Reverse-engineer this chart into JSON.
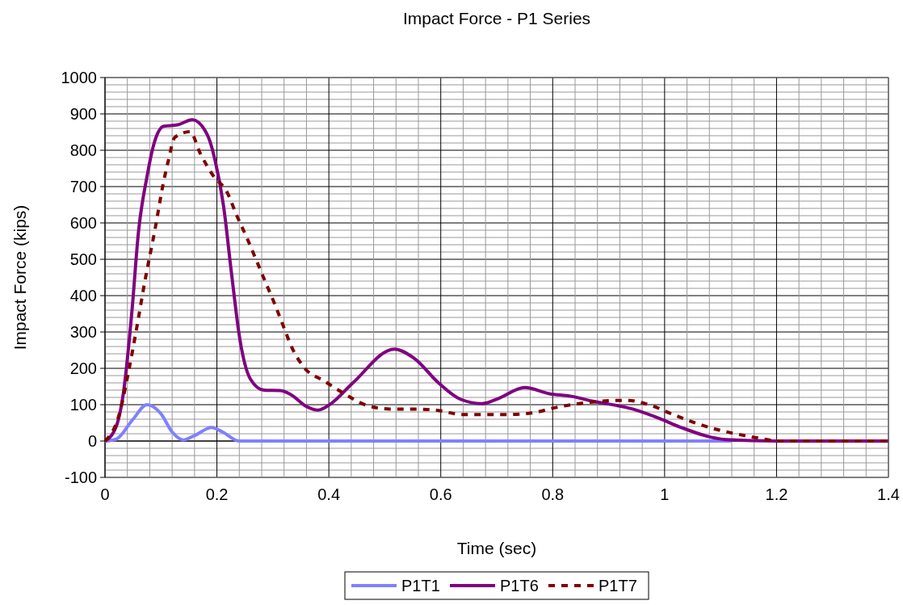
{
  "chart_data": {
    "type": "line",
    "title": "Impact Force - P1 Series",
    "xlabel": "Time (sec)",
    "ylabel": "Impact Force (kips)",
    "xlim": [
      0,
      1.4
    ],
    "ylim": [
      -100,
      1000
    ],
    "xticks": [
      0,
      {
        "value": 0.04,
        "label": null
      },
      {
        "value": 0.08,
        "label": null
      },
      {
        "value": 0.12,
        "label": null
      },
      {
        "value": 0.16,
        "label": null
      },
      0.2,
      {
        "value": 0.24,
        "label": null
      },
      {
        "value": 0.28,
        "label": null
      },
      {
        "value": 0.32,
        "label": null
      },
      {
        "value": 0.36,
        "label": null
      },
      0.4,
      {
        "value": 0.44,
        "label": null
      },
      {
        "value": 0.48,
        "label": null
      },
      {
        "value": 0.52,
        "label": null
      },
      {
        "value": 0.56,
        "label": null
      },
      0.6,
      {
        "value": 0.64,
        "label": null
      },
      {
        "value": 0.68,
        "label": null
      },
      {
        "value": 0.72,
        "label": null
      },
      {
        "value": 0.76,
        "label": null
      },
      0.8,
      {
        "value": 0.84,
        "label": null
      },
      {
        "value": 0.88,
        "label": null
      },
      {
        "value": 0.92,
        "label": null
      },
      {
        "value": 0.96,
        "label": null
      },
      1,
      {
        "value": 1.04,
        "label": null
      },
      {
        "value": 1.08,
        "label": null
      },
      {
        "value": 1.12,
        "label": null
      },
      {
        "value": 1.16,
        "label": null
      },
      1.2,
      {
        "value": 1.24,
        "label": null
      },
      {
        "value": 1.28,
        "label": null
      },
      {
        "value": 1.32,
        "label": null
      },
      {
        "value": 1.36,
        "label": null
      },
      1.4
    ],
    "yticks": [
      -100,
      {
        "value": -80,
        "label": null
      },
      {
        "value": -60,
        "label": null
      },
      {
        "value": -40,
        "label": null
      },
      {
        "value": -20,
        "label": null
      },
      0,
      {
        "value": 20,
        "label": null
      },
      {
        "value": 40,
        "label": null
      },
      {
        "value": 60,
        "label": null
      },
      {
        "value": 80,
        "label": null
      },
      100,
      {
        "value": 120,
        "label": null
      },
      {
        "value": 140,
        "label": null
      },
      {
        "value": 160,
        "label": null
      },
      {
        "value": 180,
        "label": null
      },
      200,
      {
        "value": 220,
        "label": null
      },
      {
        "value": 240,
        "label": null
      },
      {
        "value": 260,
        "label": null
      },
      {
        "value": 280,
        "label": null
      },
      300,
      {
        "value": 320,
        "label": null
      },
      {
        "value": 340,
        "label": null
      },
      {
        "value": 360,
        "label": null
      },
      {
        "value": 380,
        "label": null
      },
      400,
      {
        "value": 420,
        "label": null
      },
      {
        "value": 440,
        "label": null
      },
      {
        "value": 460,
        "label": null
      },
      {
        "value": 480,
        "label": null
      },
      500,
      {
        "value": 520,
        "label": null
      },
      {
        "value": 540,
        "label": null
      },
      {
        "value": 560,
        "label": null
      },
      {
        "value": 580,
        "label": null
      },
      600,
      {
        "value": 620,
        "label": null
      },
      {
        "value": 640,
        "label": null
      },
      {
        "value": 660,
        "label": null
      },
      {
        "value": 680,
        "label": null
      },
      700,
      {
        "value": 720,
        "label": null
      },
      {
        "value": 740,
        "label": null
      },
      {
        "value": 760,
        "label": null
      },
      {
        "value": 780,
        "label": null
      },
      800,
      {
        "value": 820,
        "label": null
      },
      {
        "value": 840,
        "label": null
      },
      {
        "value": 860,
        "label": null
      },
      {
        "value": 880,
        "label": null
      },
      900,
      {
        "value": 920,
        "label": null
      },
      {
        "value": 940,
        "label": null
      },
      {
        "value": 960,
        "label": null
      },
      {
        "value": 980,
        "label": null
      },
      1000
    ],
    "grid": true,
    "legend": "bottom",
    "series": [
      {
        "name": "P1T1",
        "color": "#8080ff",
        "line_style": "solid",
        "x": [
          0,
          0.02,
          0.05,
          0.075,
          0.1,
          0.12,
          0.14,
          0.16,
          0.19,
          0.21,
          0.24,
          1.12
        ],
        "values": [
          0,
          5,
          60,
          100,
          75,
          25,
          3,
          15,
          37,
          25,
          0,
          0
        ]
      },
      {
        "name": "P1T6",
        "color": "#800080",
        "line_style": "solid",
        "x": [
          0,
          0.02,
          0.033,
          0.048,
          0.06,
          0.075,
          0.087,
          0.105,
          0.13,
          0.156,
          0.183,
          0.197,
          0.212,
          0.226,
          0.241,
          0.26,
          0.284,
          0.313,
          0.332,
          0.36,
          0.38,
          0.404,
          0.443,
          0.517,
          0.553,
          0.596,
          0.635,
          0.674,
          0.703,
          0.75,
          0.794,
          0.833,
          0.87,
          0.943,
          0.991,
          1.03,
          1.11,
          1.2,
          1.4
        ],
        "values": [
          0,
          40,
          133,
          355,
          578,
          727,
          815,
          866,
          870,
          884,
          842,
          770,
          645,
          462,
          280,
          170,
          140,
          139,
          128,
          95,
          85,
          103,
          160,
          253,
          227,
          160,
          115,
          103,
          117,
          147,
          130,
          123,
          110,
          88,
          62,
          37,
          4,
          0,
          0
        ]
      },
      {
        "name": "P1T7",
        "color": "#800000",
        "line_style": "dashed",
        "x": [
          0,
          0.024,
          0.043,
          0.058,
          0.072,
          0.089,
          0.104,
          0.113,
          0.125,
          0.152,
          0.17,
          0.192,
          0.219,
          0.235,
          0.253,
          0.27,
          0.286,
          0.303,
          0.318,
          0.334,
          0.356,
          0.392,
          0.43,
          0.466,
          0.51,
          0.553,
          0.596,
          0.638,
          0.678,
          0.722,
          0.762,
          0.805,
          0.847,
          0.89,
          0.931,
          0.974,
          1.015,
          1.058,
          1.1,
          1.143,
          1.183,
          1.2,
          1.4
        ],
        "values": [
          0,
          66,
          198,
          323,
          446,
          579,
          708,
          770,
          836,
          851,
          792,
          733,
          682,
          622,
          561,
          499,
          440,
          378,
          319,
          257,
          202,
          165,
          128,
          99,
          88,
          88,
          84,
          73,
          73,
          73,
          77,
          92,
          103,
          110,
          112,
          99,
          73,
          48,
          29,
          15,
          4,
          0,
          0
        ]
      }
    ]
  }
}
